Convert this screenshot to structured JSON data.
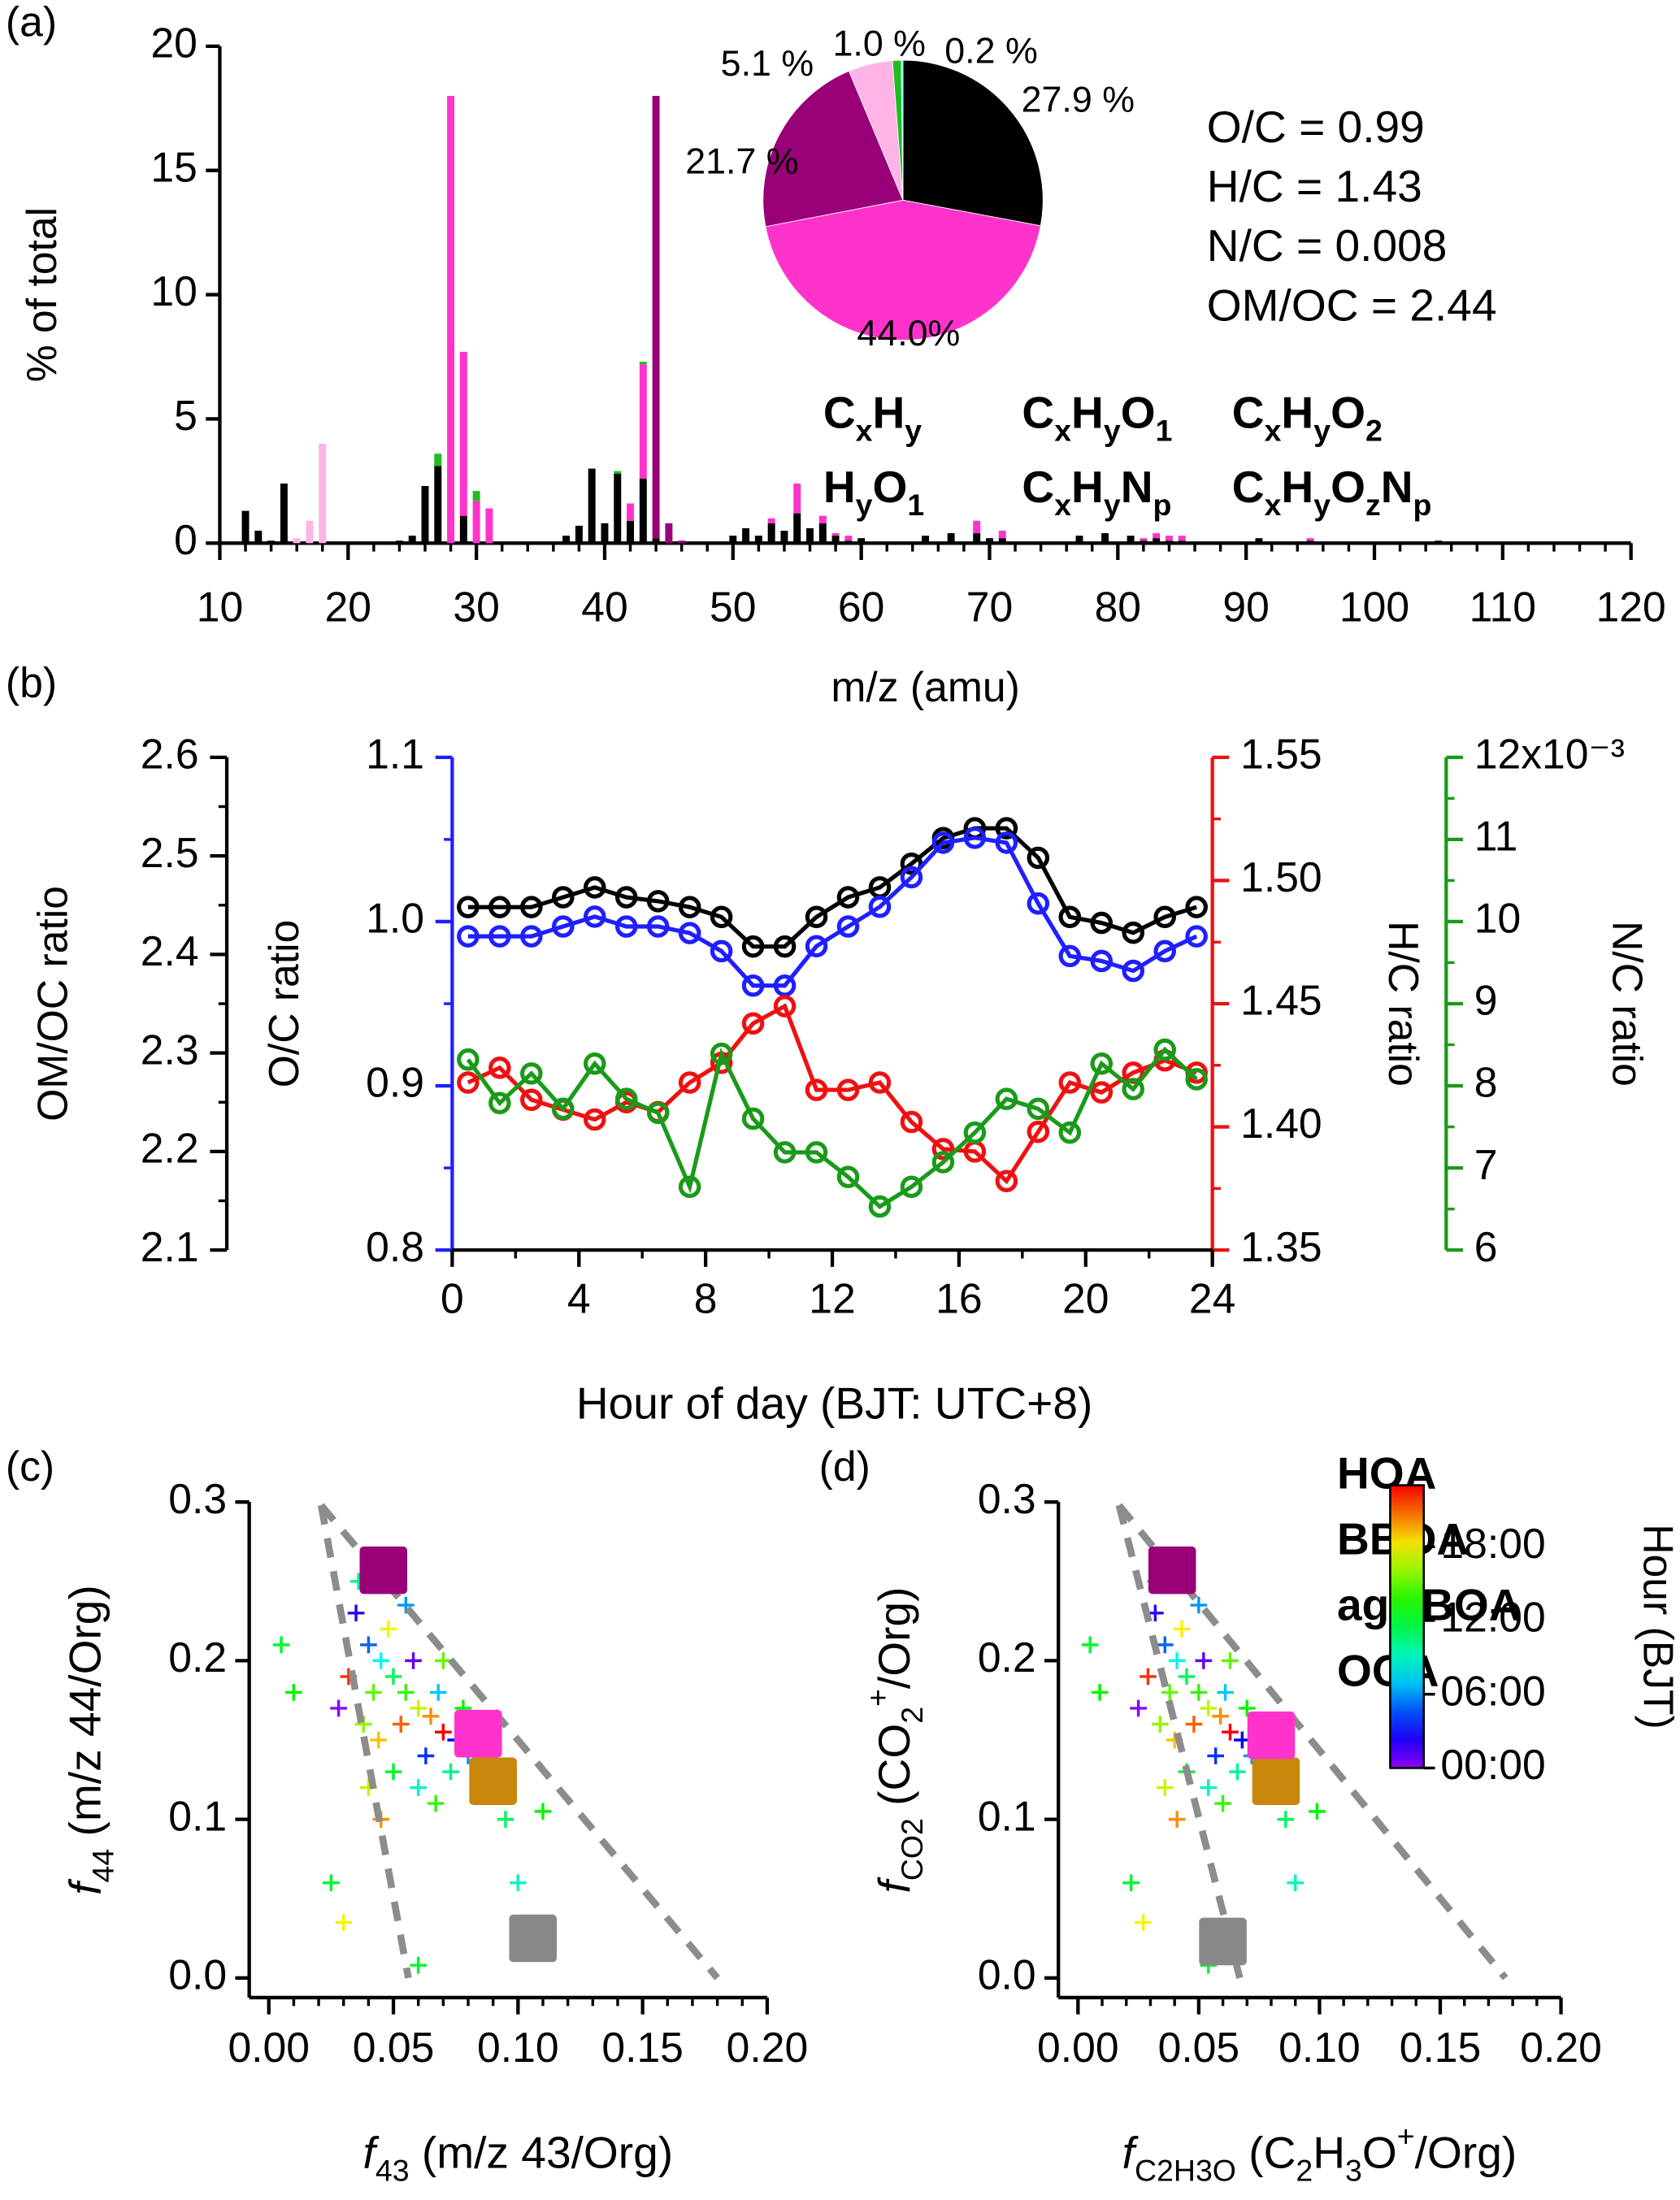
{
  "chart_data": [
    {
      "type": "bar",
      "label": "(a)",
      "ylabel": "% of total",
      "xlabel": "m/z  (amu)",
      "stacked": true,
      "xlim": [
        10,
        120
      ],
      "xticks": [
        10,
        20,
        30,
        40,
        50,
        60,
        70,
        80,
        90,
        100,
        110,
        120
      ],
      "ylim": [
        0,
        20
      ],
      "yticks": [
        0,
        5,
        10,
        15,
        20
      ],
      "x": [
        12,
        13,
        14,
        15,
        16,
        17,
        18,
        24,
        25,
        26,
        27,
        28,
        29,
        30,
        31,
        37,
        38,
        39,
        40,
        41,
        42,
        43,
        44,
        45,
        46,
        50,
        51,
        52,
        53,
        54,
        55,
        56,
        57,
        58,
        59,
        60,
        65,
        67,
        69,
        70,
        71,
        77,
        79,
        81,
        82,
        83,
        84,
        85,
        91,
        95,
        105,
        111
      ],
      "series": [
        {
          "name": "CxHy",
          "color": "#000000",
          "values": [
            1.3,
            0.5,
            0.1,
            2.4,
            0,
            0,
            0,
            0.1,
            0.3,
            2.3,
            3.1,
            0,
            1.1,
            0,
            0,
            0.3,
            0.7,
            3.0,
            0.8,
            2.8,
            0.9,
            2.6,
            0.2,
            0,
            0,
            0.3,
            0.6,
            0.3,
            0.8,
            0.5,
            1.2,
            0.6,
            0.8,
            0.3,
            0.1,
            0.2,
            0.3,
            0.4,
            0.4,
            0.2,
            0.2,
            0.3,
            0.4,
            0.3,
            0.1,
            0.2,
            0.1,
            0.1,
            0.2,
            0.1,
            0.1,
            0.05
          ]
        },
        {
          "name": "CxHyO1",
          "color": "#ff33cc",
          "values": [
            0,
            0,
            0,
            0,
            0,
            0,
            0,
            0,
            0,
            0,
            0,
            18.0,
            6.6,
            1.7,
            1.4,
            0,
            0,
            0,
            0,
            0,
            0.7,
            4.6,
            0,
            0,
            0,
            0,
            0,
            0,
            0.2,
            0,
            1.2,
            0,
            0.3,
            0.1,
            0.2,
            0,
            0,
            0,
            0.5,
            0,
            0.3,
            0,
            0,
            0,
            0.1,
            0.2,
            0.2,
            0.2,
            0,
            0.1,
            0,
            0
          ]
        },
        {
          "name": "CxHyO2",
          "color": "#990077",
          "values": [
            0,
            0,
            0,
            0,
            0,
            0,
            0,
            0,
            0,
            0,
            0,
            0,
            0,
            0,
            0,
            0,
            0,
            0,
            0,
            0,
            0,
            0,
            17.8,
            0.8,
            0.1,
            0,
            0,
            0,
            0,
            0,
            0,
            0,
            0,
            0,
            0,
            0,
            0,
            0,
            0,
            0,
            0,
            0,
            0,
            0,
            0,
            0,
            0,
            0,
            0,
            0,
            0,
            0
          ]
        },
        {
          "name": "HyO1",
          "color": "#ffb3e6",
          "values": [
            0,
            0,
            0,
            0,
            0.2,
            0.9,
            4.0,
            0,
            0,
            0,
            0,
            0,
            0,
            0,
            0,
            0,
            0,
            0,
            0,
            0,
            0,
            0,
            0,
            0,
            0,
            0,
            0,
            0,
            0,
            0,
            0,
            0,
            0,
            0,
            0,
            0,
            0,
            0,
            0,
            0,
            0,
            0,
            0,
            0,
            0,
            0,
            0,
            0,
            0,
            0,
            0,
            0
          ]
        },
        {
          "name": "CxHyNp",
          "color": "#22bb22",
          "values": [
            0,
            0,
            0,
            0,
            0,
            0,
            0,
            0,
            0,
            0,
            0.5,
            0,
            0,
            0.4,
            0,
            0,
            0,
            0,
            0,
            0.1,
            0,
            0.1,
            0,
            0,
            0,
            0,
            0,
            0,
            0,
            0,
            0,
            0,
            0,
            0,
            0,
            0,
            0,
            0,
            0,
            0,
            0,
            0,
            0,
            0,
            0,
            0,
            0,
            0,
            0,
            0,
            0,
            0
          ]
        },
        {
          "name": "CxHyOzNp",
          "color": "#33ffff",
          "values": [
            0,
            0,
            0,
            0,
            0,
            0,
            0,
            0,
            0,
            0,
            0,
            0,
            0,
            0,
            0,
            0,
            0,
            0,
            0,
            0,
            0,
            0,
            0,
            0,
            0,
            0,
            0,
            0,
            0,
            0,
            0,
            0,
            0,
            0,
            0,
            0,
            0,
            0,
            0,
            0,
            0,
            0,
            0,
            0,
            0,
            0,
            0,
            0,
            0,
            0,
            0,
            0
          ]
        }
      ],
      "pie": {
        "values": [
          27.9,
          44.0,
          21.7,
          5.1,
          1.0,
          0.2
        ],
        "value_labels": [
          "27.9 %",
          "44.0%",
          "21.7 %",
          "5.1 %",
          "1.0 %",
          "0.2 %"
        ]
      },
      "annotations": [
        "O/C = 0.99",
        "H/C = 1.43",
        "N/C = 0.008",
        "OM/OC = 2.44"
      ]
    },
    {
      "type": "line",
      "label": "(b)",
      "xlabel": "Hour of day (BJT: UTC+8)",
      "xlim": [
        0,
        24
      ],
      "xticks": [
        0,
        4,
        8,
        12,
        16,
        20,
        24
      ],
      "ylabel": "OM/OC ratio",
      "ylim": [
        2.1,
        2.6
      ],
      "yticks": [
        2.1,
        2.2,
        2.3,
        2.4,
        2.5,
        2.6
      ],
      "y2label": "O/C ratio",
      "y2lim": [
        0.8,
        1.1
      ],
      "y2ticks": [
        0.8,
        0.9,
        {
          "value": 1.0,
          "label": "1.0"
        },
        1.1
      ],
      "y3label": "H/C ratio",
      "y3lim": [
        1.35,
        1.55
      ],
      "y3ticks": [
        1.35,
        {
          "value": 1.4,
          "label": "1.40"
        },
        1.45,
        {
          "value": 1.5,
          "label": "1.50"
        },
        1.55
      ],
      "y4label": "N/C ratio",
      "y4lim": [
        0.006,
        0.012
      ],
      "y4ticks": [
        {
          "value": 0.006,
          "label": "6"
        },
        {
          "value": 0.007,
          "label": "7"
        },
        {
          "value": 0.008,
          "label": "8"
        },
        {
          "value": 0.009,
          "label": "9"
        },
        {
          "value": 0.01,
          "label": "10"
        },
        {
          "value": 0.011,
          "label": "11"
        },
        {
          "value": 0.012,
          "label": "12x10⁻³"
        }
      ],
      "x": [
        0.5,
        1.5,
        2.5,
        3.5,
        4.5,
        5.5,
        6.5,
        7.5,
        8.5,
        9.5,
        10.5,
        11.5,
        12.5,
        13.5,
        14.5,
        15.5,
        16.5,
        17.5,
        18.5,
        19.5,
        20.5,
        21.5,
        22.5,
        23.5
      ],
      "series": [
        {
          "axis": "y",
          "color": "#000000",
          "values": [
            2.448,
            2.448,
            2.448,
            2.458,
            2.468,
            2.458,
            2.454,
            2.448,
            2.438,
            2.408,
            2.408,
            2.438,
            2.458,
            2.468,
            2.492,
            2.518,
            2.528,
            2.528,
            2.498,
            2.438,
            2.432,
            2.422,
            2.438,
            2.448
          ]
        },
        {
          "axis": "y2",
          "color": "#1f1fff",
          "values": [
            0.991,
            0.991,
            0.991,
            0.997,
            1.003,
            0.997,
            0.997,
            0.993,
            0.982,
            0.961,
            0.961,
            0.985,
            0.997,
            1.009,
            1.027,
            1.048,
            1.051,
            1.048,
            1.011,
            0.979,
            0.976,
            0.97,
            0.982,
            0.991
          ]
        },
        {
          "axis": "y3",
          "color": "#ee1111",
          "values": [
            1.418,
            1.424,
            1.411,
            1.407,
            1.403,
            1.41,
            1.406,
            1.418,
            1.426,
            1.442,
            1.449,
            1.415,
            1.415,
            1.418,
            1.402,
            1.391,
            1.39,
            1.378,
            1.398,
            1.418,
            1.414,
            1.422,
            1.427,
            1.422
          ]
        },
        {
          "axis": "y4",
          "color": "#1a9a1a",
          "values": [
            0.00832,
            0.00779,
            0.00815,
            0.00772,
            0.00827,
            0.00784,
            0.00767,
            0.00677,
            0.00839,
            0.0076,
            0.00719,
            0.00719,
            0.00689,
            0.00653,
            0.00677,
            0.00707,
            0.00743,
            0.00784,
            0.00772,
            0.00743,
            0.00827,
            0.00796,
            0.00844,
            0.00808
          ]
        }
      ]
    },
    {
      "type": "scatter",
      "label": "(c)",
      "xlabel": "f43 (m/z 43/Org)",
      "ylabel": "f44 (m/z 44/Org)",
      "xlim": [
        0,
        0.2
      ],
      "xticks": [
        {
          "value": 0,
          "label": "0.00"
        },
        0.05,
        {
          "value": 0.1,
          "label": "0.10"
        },
        0.15,
        {
          "value": 0.2,
          "label": "0.20"
        }
      ],
      "ylim": [
        0,
        0.3
      ],
      "yticks": [
        {
          "value": 0,
          "label": "0.0"
        },
        0.1,
        0.2,
        0.3
      ],
      "x": [
        0.035,
        0.04,
        0.045,
        0.05,
        0.055,
        0.06,
        0.065,
        0.07,
        0.075,
        0.08,
        0.085,
        0.09,
        0.042,
        0.048,
        0.053,
        0.058,
        0.063,
        0.068,
        0.073,
        0.078,
        0.038,
        0.044,
        0.032,
        0.028,
        0.05,
        0.06,
        0.067,
        0.095,
        0.1,
        0.11,
        0.005,
        0.01,
        0.025,
        0.03,
        0.06,
        0.045,
        0.04,
        0.055,
        0.036,
        0.07
      ],
      "values": [
        0.23,
        0.21,
        0.2,
        0.19,
        0.18,
        0.17,
        0.165,
        0.155,
        0.15,
        0.14,
        0.13,
        0.12,
        0.18,
        0.22,
        0.16,
        0.2,
        0.14,
        0.18,
        0.13,
        0.17,
        0.16,
        0.15,
        0.19,
        0.17,
        0.13,
        0.12,
        0.11,
        0.1,
        0.06,
        0.105,
        0.21,
        0.18,
        0.06,
        0.035,
        0.008,
        0.1,
        0.12,
        0.235,
        0.25,
        0.2
      ],
      "hours": [
        2,
        5,
        8,
        11,
        14,
        17,
        20,
        23,
        3,
        6,
        9,
        12,
        15,
        18,
        21,
        1,
        4,
        7,
        10,
        13,
        16,
        19,
        22,
        0,
        12,
        9,
        14,
        11,
        9,
        13,
        12,
        13,
        12,
        18,
        12,
        20,
        17,
        6,
        10,
        15
      ],
      "lines": [
        {
          "x": [
            0.021,
            0.056
          ],
          "values": [
            0.298,
            0
          ]
        },
        {
          "x": [
            0.021,
            0.18
          ],
          "values": [
            0.298,
            0
          ]
        }
      ],
      "factors": {
        "colors": [
          "#888888",
          "#c8860a",
          "#ff33cc",
          "#990077"
        ],
        "x": [
          0.106,
          0.09,
          0.084,
          0.046
        ],
        "values": [
          0.025,
          0.124,
          0.154,
          0.257
        ]
      }
    },
    {
      "type": "scatter",
      "label": "(d)",
      "xlabel": "fC2H3O (C2H3O+/Org)",
      "ylabel": "fCO2 (CO2+/Org)",
      "xlim": [
        0,
        0.2
      ],
      "xticks": [
        {
          "value": 0,
          "label": "0.00"
        },
        0.05,
        {
          "value": 0.1,
          "label": "0.10"
        },
        0.15,
        {
          "value": 0.2,
          "label": "0.20"
        }
      ],
      "ylim": [
        0,
        0.3
      ],
      "yticks": [
        {
          "value": 0,
          "label": "0.0"
        },
        0.1,
        0.2,
        0.3
      ],
      "x": [
        0.032,
        0.036,
        0.041,
        0.045,
        0.05,
        0.054,
        0.059,
        0.063,
        0.068,
        0.072,
        0.077,
        0.081,
        0.038,
        0.043,
        0.048,
        0.052,
        0.057,
        0.061,
        0.066,
        0.07,
        0.034,
        0.04,
        0.029,
        0.025,
        0.045,
        0.054,
        0.06,
        0.086,
        0.09,
        0.099,
        0.005,
        0.009,
        0.022,
        0.027,
        0.054,
        0.041,
        0.036,
        0.05,
        0.032,
        0.063
      ],
      "values": [
        0.23,
        0.21,
        0.2,
        0.19,
        0.18,
        0.17,
        0.165,
        0.155,
        0.15,
        0.14,
        0.13,
        0.12,
        0.18,
        0.22,
        0.16,
        0.2,
        0.14,
        0.18,
        0.13,
        0.17,
        0.16,
        0.15,
        0.19,
        0.17,
        0.13,
        0.12,
        0.11,
        0.1,
        0.06,
        0.105,
        0.21,
        0.18,
        0.06,
        0.035,
        0.008,
        0.1,
        0.12,
        0.235,
        0.25,
        0.2
      ],
      "hours": [
        2,
        5,
        8,
        11,
        14,
        17,
        20,
        23,
        3,
        6,
        9,
        12,
        15,
        18,
        21,
        1,
        4,
        7,
        10,
        13,
        16,
        19,
        22,
        0,
        12,
        9,
        14,
        11,
        9,
        13,
        12,
        13,
        12,
        18,
        12,
        20,
        17,
        6,
        10,
        15
      ],
      "lines": [
        {
          "x": [
            0.017,
            0.067
          ],
          "values": [
            0.298,
            0
          ]
        },
        {
          "x": [
            0.017,
            0.177
          ],
          "values": [
            0.298,
            0
          ]
        }
      ],
      "factors": {
        "names": [
          "HOA",
          "BBOA",
          "agBBOA",
          "OOA"
        ],
        "colors": [
          "#888888",
          "#c8860a",
          "#ff33cc",
          "#990077"
        ],
        "x": [
          0.06,
          0.082,
          0.08,
          0.039
        ],
        "values": [
          0.023,
          0.124,
          0.153,
          0.257
        ]
      },
      "colorbar": {
        "label": "Hour (BJT)",
        "clim": [
          0,
          23
        ],
        "ticks": [
          {
            "value": 0,
            "label": "00:00"
          },
          {
            "value": 6,
            "label": "06:00"
          },
          {
            "value": 12,
            "label": "12:00"
          },
          {
            "value": 18,
            "label": "18:00"
          }
        ]
      }
    }
  ]
}
